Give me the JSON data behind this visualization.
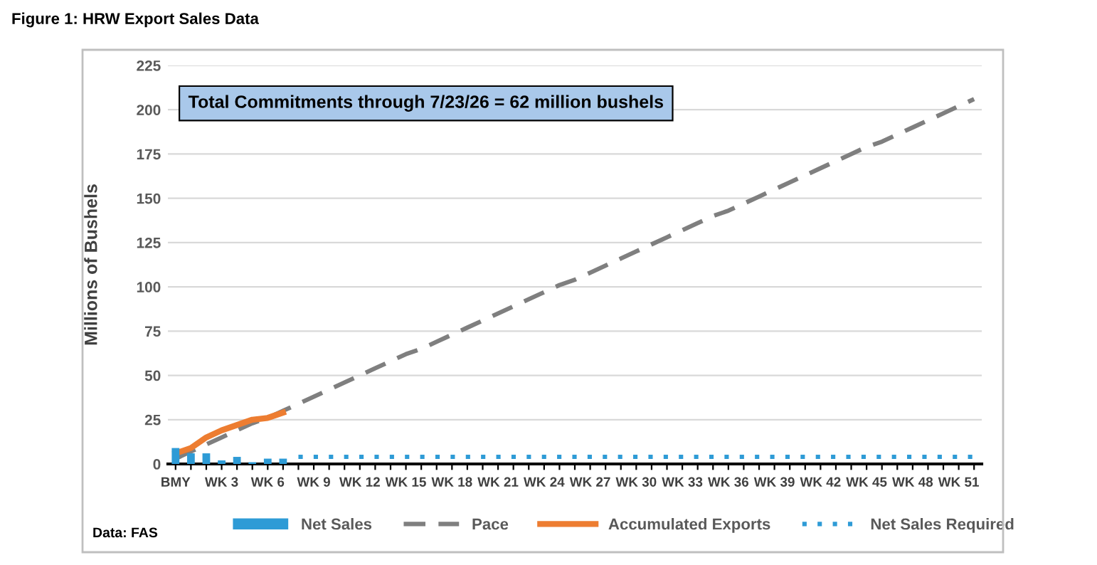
{
  "chart_data": {
    "type": "bar",
    "title": "Figure 1: HRW Export Sales Data",
    "ylabel": "Millions of Bushels",
    "categories": [
      "BMY",
      null,
      null,
      "WK 3",
      null,
      null,
      "WK 6",
      null,
      null,
      "WK 9",
      null,
      null,
      "WK 12",
      null,
      null,
      "WK 15",
      null,
      null,
      "WK 18",
      null,
      null,
      "WK 21",
      null,
      null,
      "WK 24",
      null,
      null,
      "WK 27",
      null,
      null,
      "WK 30",
      null,
      null,
      "WK 33",
      null,
      null,
      "WK 36",
      null,
      null,
      "WK 39",
      null,
      null,
      "WK 42",
      null,
      null,
      "WK 45",
      null,
      null,
      "WK 48",
      null,
      null,
      "WK 51",
      null
    ],
    "series": [
      {
        "name": "Net Sales",
        "color": "#2e9bd6",
        "values": [
          9,
          6,
          6,
          2,
          4,
          1,
          3,
          3,
          null,
          null,
          null,
          null,
          null,
          null,
          null,
          null,
          null,
          null,
          null,
          null,
          null,
          null,
          null,
          null,
          null,
          null,
          null,
          null,
          null,
          null,
          null,
          null,
          null,
          null,
          null,
          null,
          null,
          null,
          null,
          null,
          null,
          null,
          null,
          null,
          null,
          null,
          null,
          null,
          null,
          null,
          null,
          null,
          null
        ]
      },
      {
        "name": "Pace",
        "type": "line",
        "line_style": "dashed",
        "color": "#7f7f7f",
        "values": [
          3,
          7,
          11,
          15,
          19,
          23,
          26,
          30,
          34,
          38,
          42,
          46,
          50,
          54,
          58,
          62,
          65,
          69,
          73,
          77,
          81,
          85,
          89,
          93,
          97,
          101,
          104,
          108,
          112,
          116,
          120,
          124,
          128,
          132,
          136,
          140,
          143,
          147,
          151,
          155,
          159,
          163,
          167,
          171,
          175,
          179,
          182,
          186,
          190,
          194,
          198,
          202,
          206
        ]
      },
      {
        "name": "Accumulated Exports",
        "type": "line",
        "line_style": "solid",
        "color": "#ed7d31",
        "values": [
          6,
          9,
          15,
          19,
          22,
          25,
          26,
          29,
          null,
          null,
          null,
          null,
          null,
          null,
          null,
          null,
          null,
          null,
          null,
          null,
          null,
          null,
          null,
          null,
          null,
          null,
          null,
          null,
          null,
          null,
          null,
          null,
          null,
          null,
          null,
          null,
          null,
          null,
          null,
          null,
          null,
          null,
          null,
          null,
          null,
          null,
          null,
          null,
          null,
          null,
          null,
          null,
          null
        ]
      },
      {
        "name": "Net Sales Required",
        "type": "line",
        "line_style": "dotted",
        "color": "#2e9bd6",
        "values": [
          null,
          null,
          null,
          null,
          null,
          null,
          null,
          null,
          4,
          4,
          4,
          4,
          4,
          4,
          4,
          4,
          4,
          4,
          4,
          4,
          4,
          4,
          4,
          4,
          4,
          4,
          4,
          4,
          4,
          4,
          4,
          4,
          4,
          4,
          4,
          4,
          4,
          4,
          4,
          4,
          4,
          4,
          4,
          4,
          4,
          4,
          4,
          4,
          4,
          4,
          4,
          4,
          4
        ]
      }
    ],
    "ylim": [
      0,
      225
    ],
    "yticks": [
      0,
      25,
      50,
      75,
      100,
      125,
      150,
      175,
      200,
      225
    ],
    "grid": "y",
    "legend": "bottom",
    "annotations": [
      "Total Commitments through 7/23/26 = 62 million bushels",
      "Data: FAS"
    ]
  }
}
